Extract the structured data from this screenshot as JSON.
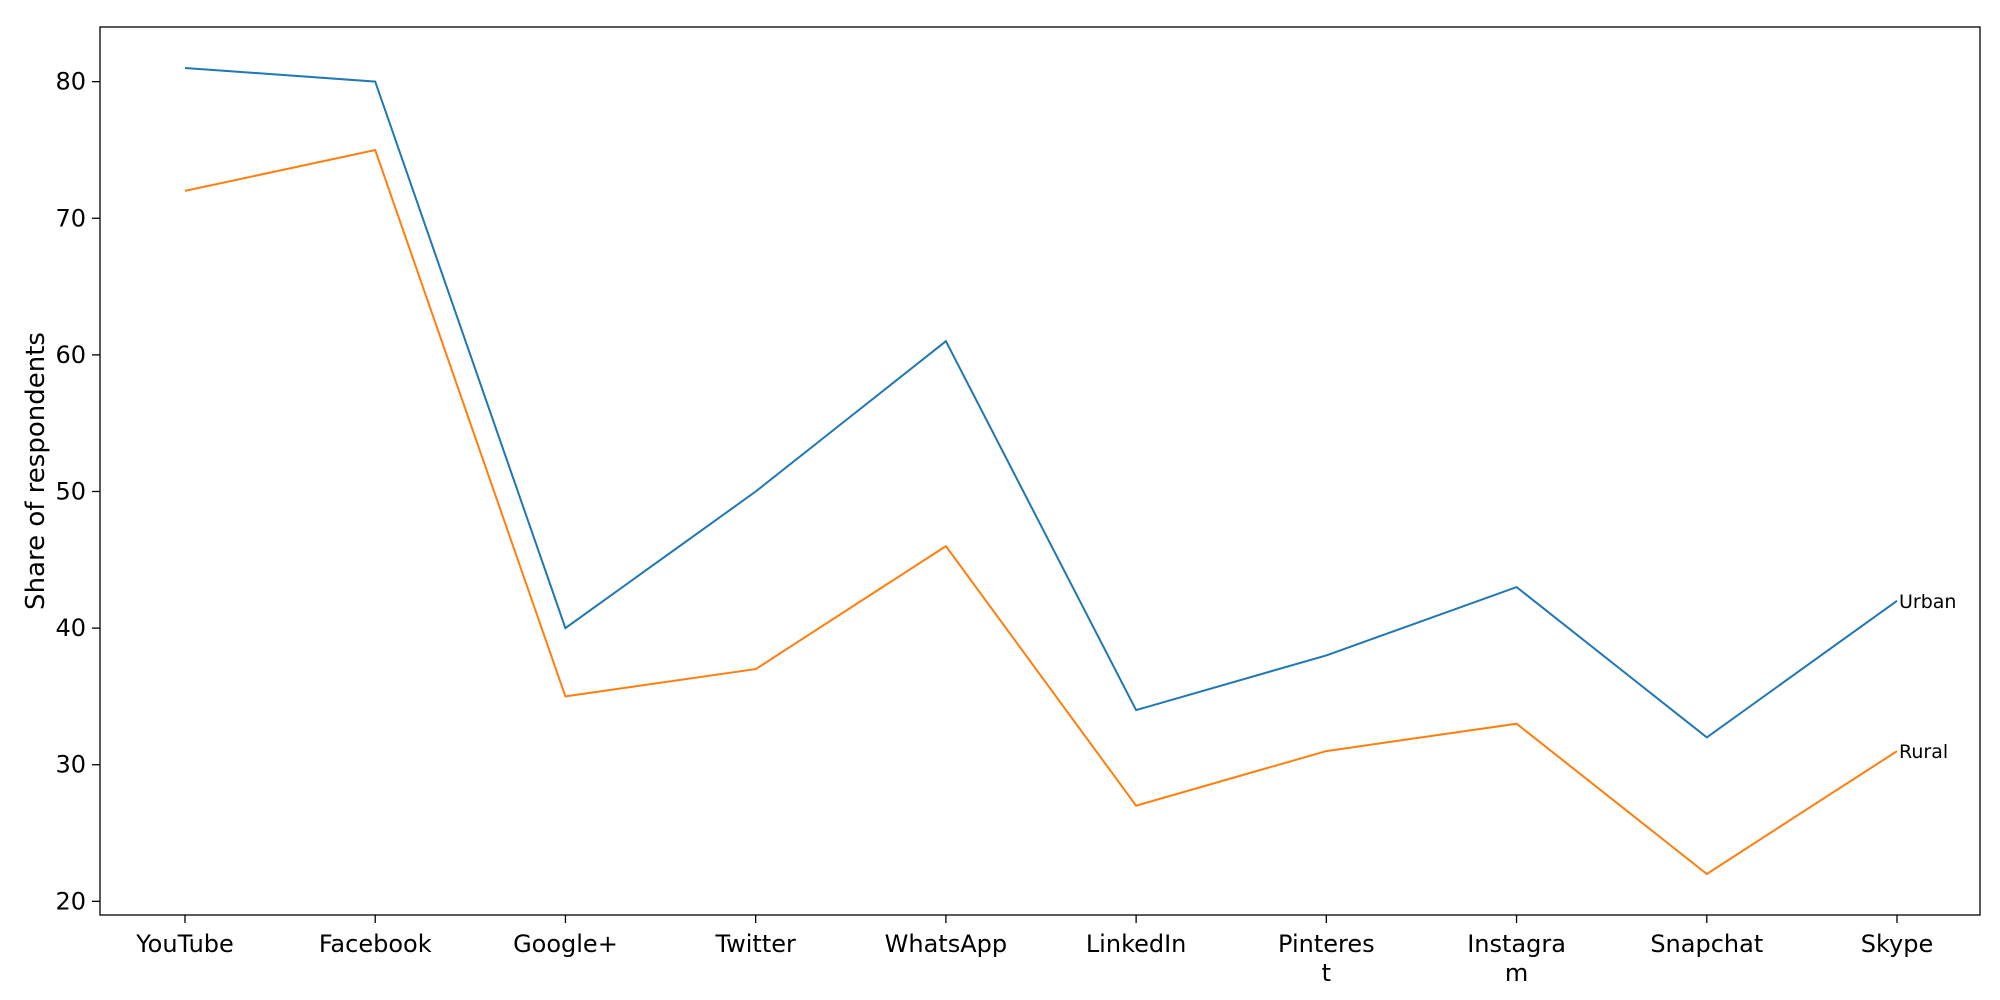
{
  "chart_data": {
    "type": "line",
    "categories": [
      "YouTube",
      "Facebook",
      "Google+",
      "Twitter",
      "WhatsApp",
      "LinkedIn",
      "Pinteres\nt",
      "Instagra\nm",
      "Snapchat",
      "Skype"
    ],
    "series": [
      {
        "name": "Urban",
        "color": "#1f77b4",
        "values": [
          81,
          80,
          40,
          50,
          61,
          34,
          38,
          43,
          32,
          42
        ]
      },
      {
        "name": "Rural",
        "color": "#ff7f0e",
        "values": [
          72,
          75,
          35,
          37,
          46,
          27,
          31,
          33,
          22,
          31
        ]
      }
    ],
    "title": "",
    "xlabel": "",
    "ylabel": "Share of respondents",
    "ylim": [
      19,
      84
    ],
    "yticks": [
      20,
      30,
      40,
      50,
      60,
      70,
      80
    ],
    "grid": false,
    "legend": "none; series names shown as end-of-line labels"
  }
}
